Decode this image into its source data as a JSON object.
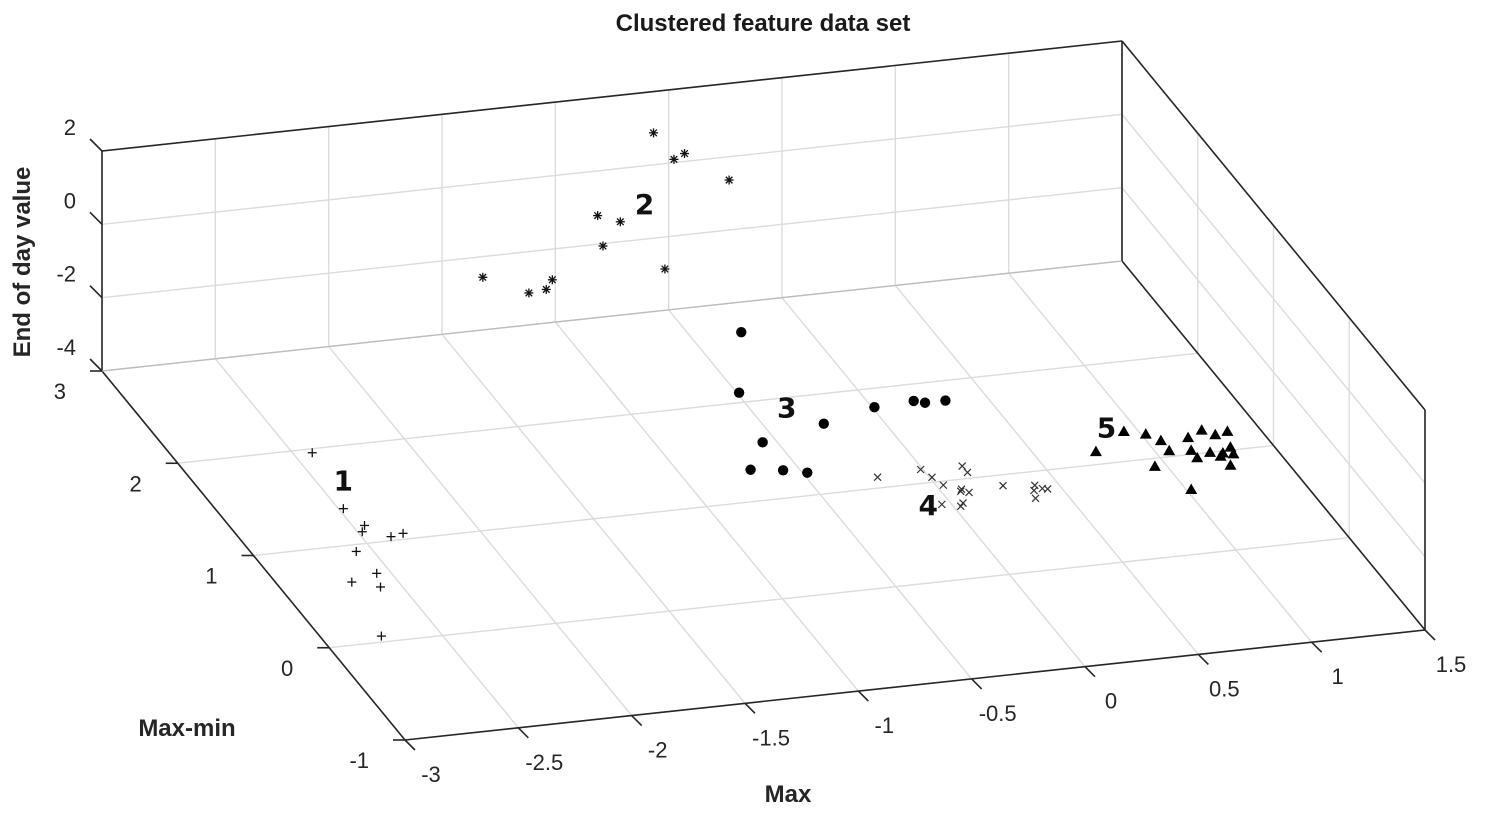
{
  "chart_data": {
    "type": "scatter",
    "title": "Clustered feature data set",
    "xlabel": "Max",
    "ylabel": "Max-min",
    "zlabel": "End of day value",
    "xlim": [
      -3,
      1.5
    ],
    "ylim": [
      -1,
      3
    ],
    "zlim": [
      -4,
      2
    ],
    "xticks": [
      "-3",
      "-2.5",
      "-2",
      "-1.5",
      "-1",
      "-0.5",
      "0",
      "0.5",
      "1",
      "1.5"
    ],
    "yticks": [
      "-1",
      "0",
      "1",
      "2",
      "3"
    ],
    "zticks": [
      "-4",
      "-2",
      "0",
      "2"
    ],
    "grid": true,
    "series": [
      {
        "name": "1",
        "marker": "plus",
        "points": [
          [
            -2.75,
            0.06,
            -4
          ],
          [
            -2.42,
            1.96,
            -4
          ],
          [
            -2.48,
            1.37,
            -4
          ],
          [
            -2.32,
            1.06,
            -4
          ],
          [
            -2.48,
            1.12,
            -4
          ],
          [
            -2.45,
            1.18,
            -4
          ],
          [
            -2.38,
            1.04,
            -4
          ],
          [
            -2.57,
            0.93,
            -4
          ],
          [
            -2.56,
            0.69,
            -4
          ],
          [
            -2.69,
            0.63,
            -4
          ],
          [
            -2.59,
            0.55,
            -4
          ]
        ]
      },
      {
        "name": "2",
        "marker": "asterisk",
        "points": [
          [
            -0.57,
            2.99,
            0.9
          ],
          [
            -0.49,
            2.96,
            0.2
          ],
          [
            -0.44,
            2.97,
            0.3
          ],
          [
            -0.25,
            2.95,
            -0.5
          ],
          [
            -0.84,
            2.92,
            -1.0
          ],
          [
            -0.81,
            2.94,
            -1.9
          ],
          [
            -0.72,
            2.98,
            -1.4
          ],
          [
            -0.55,
            2.9,
            -2.6
          ],
          [
            -1.34,
            2.94,
            -2.4
          ],
          [
            -1.03,
            2.95,
            -2.7
          ],
          [
            -1.05,
            2.97,
            -3.0
          ],
          [
            -1.12,
            2.99,
            -3.1
          ]
        ]
      },
      {
        "name": "3",
        "marker": "filled-circle",
        "points": [
          [
            -0.28,
            2.7,
            -4
          ],
          [
            -0.49,
            2.1,
            -4
          ],
          [
            -0.56,
            1.58,
            -4
          ],
          [
            -0.25,
            1.7,
            -4
          ],
          [
            0.01,
            1.81,
            -4
          ],
          [
            0.19,
            1.83,
            -4
          ],
          [
            0.23,
            1.8,
            -4
          ],
          [
            0.32,
            1.8,
            -4
          ],
          [
            -0.7,
            1.32,
            -4
          ],
          [
            -0.57,
            1.28,
            -4
          ],
          [
            -0.48,
            1.23,
            -4
          ]
        ]
      },
      {
        "name": "4",
        "marker": "cross",
        "points": [
          [
            -0.21,
            1.11,
            -4
          ],
          [
            -0.01,
            1.14,
            -4
          ],
          [
            0.01,
            1.05,
            -4
          ],
          [
            0.17,
            1.13,
            -4
          ],
          [
            0.17,
            1.06,
            -4
          ],
          [
            0.03,
            0.96,
            -4
          ],
          [
            0.08,
            0.88,
            -4
          ],
          [
            0.09,
            0.9,
            -4
          ],
          [
            0.11,
            0.86,
            -4
          ],
          [
            -0.04,
            0.77,
            -4
          ],
          [
            0.05,
            0.76,
            -4
          ],
          [
            0.03,
            0.73,
            -4
          ],
          [
            0.27,
            0.89,
            -4
          ],
          [
            0.4,
            0.86,
            -4
          ],
          [
            0.38,
            0.81,
            -4
          ],
          [
            0.42,
            0.82,
            -4
          ],
          [
            0.44,
            0.81,
            -4
          ],
          [
            0.36,
            0.73,
            -4
          ]
        ]
      },
      {
        "name": "5",
        "marker": "filled-triangle",
        "points": [
          [
            0.76,
            1.13,
            -4
          ],
          [
            0.94,
            1.3,
            -4
          ],
          [
            1.02,
            1.25,
            -4
          ],
          [
            1.06,
            1.17,
            -4
          ],
          [
            1.18,
            1.17,
            -4
          ],
          [
            1.26,
            1.23,
            -4
          ],
          [
            1.3,
            1.17,
            -4
          ],
          [
            1.36,
            1.19,
            -4
          ],
          [
            1.06,
            1.06,
            -4
          ],
          [
            1.15,
            1.04,
            -4
          ],
          [
            1.25,
            0.95,
            -4
          ],
          [
            1.27,
            0.98,
            -4
          ],
          [
            1.31,
            0.96,
            -4
          ],
          [
            1.32,
            1.03,
            -4
          ],
          [
            0.95,
            0.92,
            -4
          ],
          [
            1.15,
            0.96,
            -4
          ],
          [
            1.22,
            1.0,
            -4
          ],
          [
            1.26,
            0.85,
            -4
          ],
          [
            1.02,
            0.65,
            -4
          ]
        ]
      }
    ],
    "cluster_labels": [
      {
        "text": "1",
        "x": -2.42,
        "y": 1.55,
        "z": -4
      },
      {
        "text": "2",
        "x": -0.62,
        "y": 2.96,
        "z": -1.2
      },
      {
        "text": "3",
        "x": -0.38,
        "y": 1.8,
        "z": -4
      },
      {
        "text": "4",
        "x": -0.13,
        "y": 0.68,
        "z": -4
      },
      {
        "text": "5",
        "x": 0.85,
        "y": 1.26,
        "z": -4
      }
    ]
  }
}
